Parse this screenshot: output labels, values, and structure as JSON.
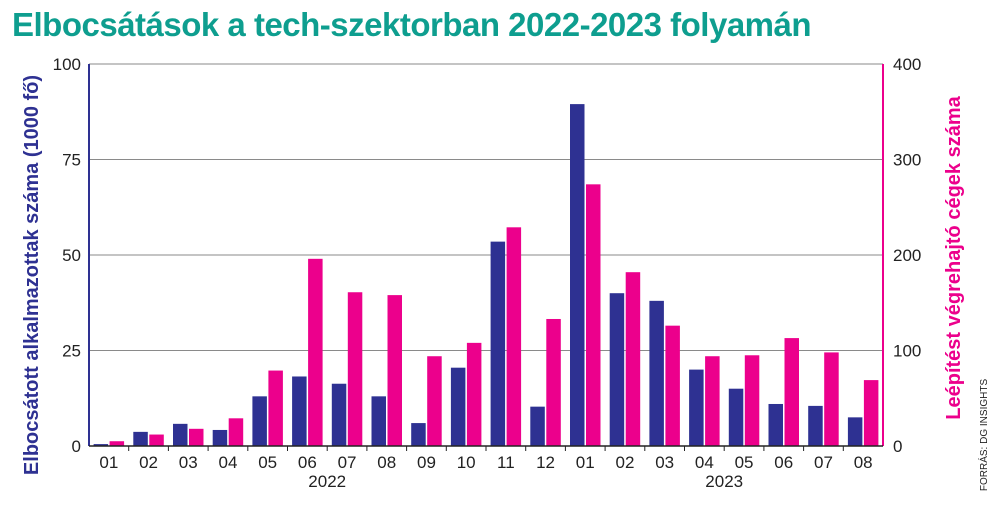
{
  "chart_data": {
    "type": "bar",
    "title": "Elbocsátások a tech-szektorban 2022-2023 folyamán",
    "title_color": "#0e9e8f",
    "categories": [
      "01",
      "02",
      "03",
      "04",
      "05",
      "06",
      "07",
      "08",
      "09",
      "10",
      "11",
      "12",
      "01",
      "02",
      "03",
      "04",
      "05",
      "06",
      "07",
      "08"
    ],
    "year_labels": [
      {
        "label": "2022",
        "start_index": 0,
        "end_index": 11
      },
      {
        "label": "2023",
        "start_index": 12,
        "end_index": 19
      }
    ],
    "series": [
      {
        "name": "Elbocsátott alkalmazottak száma (1000 fő)",
        "axis": "left",
        "color": "#2e3192",
        "values": [
          0.5,
          3.7,
          5.8,
          4.2,
          13.0,
          18.2,
          16.3,
          13.0,
          6.0,
          20.5,
          53.5,
          10.3,
          89.5,
          40.0,
          38.0,
          20.0,
          15.0,
          11.0,
          10.5,
          7.5
        ]
      },
      {
        "name": "Leépítést végrehajtó cégek száma",
        "axis": "right",
        "color": "#ec008c",
        "values": [
          5,
          12,
          18,
          29,
          79,
          196,
          161,
          158,
          94,
          108,
          229,
          133,
          274,
          182,
          126,
          94,
          95,
          113,
          98,
          69
        ]
      }
    ],
    "ylabel_left": "Elbocsátott alkalmazottak száma (1000 fő)",
    "ylabel_right": "Leépítést végrehajtó cégek száma",
    "ylim_left": [
      0,
      100
    ],
    "ylim_right": [
      0,
      400
    ],
    "yticks_left": [
      "0",
      "25",
      "50",
      "75",
      "100"
    ],
    "yticks_right": [
      "0",
      "100",
      "200",
      "300",
      "400"
    ],
    "grid": "horizontal",
    "source": "FORRÁS: DG INSIGHTS"
  }
}
